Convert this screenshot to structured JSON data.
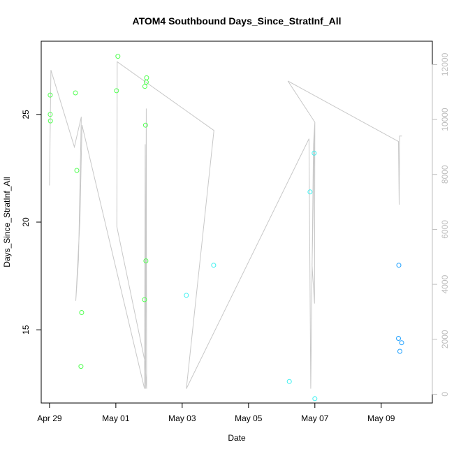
{
  "chart_data": {
    "type": "scatter",
    "title": "ATOM4 Southbound Days_Since_StratInf_All",
    "xlabel": "Date",
    "ylabel": "Days_Since_StratInf_All",
    "xlim": [
      "2016-04-28T18:00",
      "2016-05-10T13:00"
    ],
    "ylim": [
      11.6,
      28.4
    ],
    "y2lim": [
      -320,
      12850
    ],
    "x_ticks": [
      "2016-04-29",
      "2016-05-01",
      "2016-05-03",
      "2016-05-05",
      "2016-05-07",
      "2016-05-09"
    ],
    "x_tick_labels": [
      "Apr 29",
      "May 01",
      "May 03",
      "May 05",
      "May 07",
      "May 09"
    ],
    "y_ticks": [
      15,
      20,
      25
    ],
    "y2_ticks": [
      0,
      2000,
      4000,
      6000,
      8000,
      10000,
      12000
    ],
    "grid": false,
    "legend": "none",
    "colors": {
      "early": "#52ff52",
      "mid": "#3df0f0",
      "late": "#1ea0ff",
      "line": "#c8c8c8",
      "right_axis": "#bdbdbd"
    },
    "series": [
      {
        "marker": "circle-open",
        "points": [
          {
            "x": "2016-04-29T00:30",
            "y": 25.9,
            "color": "early"
          },
          {
            "x": "2016-04-29T00:30",
            "y": 25.0,
            "color": "early"
          },
          {
            "x": "2016-04-29T00:40",
            "y": 24.7,
            "color": "early"
          },
          {
            "x": "2016-04-29T18:45",
            "y": 26.0,
            "color": "early"
          },
          {
            "x": "2016-04-29T19:45",
            "y": 22.4,
            "color": "early"
          },
          {
            "x": "2016-04-29T22:45",
            "y": 13.3,
            "color": "early"
          },
          {
            "x": "2016-04-29T23:15",
            "y": 15.8,
            "color": "early"
          },
          {
            "x": "2016-05-01T00:30",
            "y": 26.1,
            "color": "early"
          },
          {
            "x": "2016-05-01T01:30",
            "y": 27.7,
            "color": "early"
          },
          {
            "x": "2016-05-01T20:45",
            "y": 16.4,
            "color": "early"
          },
          {
            "x": "2016-05-01T21:00",
            "y": 26.3,
            "color": "early"
          },
          {
            "x": "2016-05-01T21:30",
            "y": 24.5,
            "color": "early"
          },
          {
            "x": "2016-05-01T21:45",
            "y": 18.2,
            "color": "early"
          },
          {
            "x": "2016-05-01T22:00",
            "y": 26.5,
            "color": "early"
          },
          {
            "x": "2016-05-01T22:15",
            "y": 26.7,
            "color": "early"
          },
          {
            "x": "2016-05-03T03:00",
            "y": 16.6,
            "color": "mid"
          },
          {
            "x": "2016-05-03T22:45",
            "y": 18.0,
            "color": "mid"
          },
          {
            "x": "2016-05-06T05:30",
            "y": 12.6,
            "color": "mid"
          },
          {
            "x": "2016-05-06T20:30",
            "y": 21.4,
            "color": "mid"
          },
          {
            "x": "2016-05-06T23:30",
            "y": 23.2,
            "color": "mid"
          },
          {
            "x": "2016-05-07T00:00",
            "y": 11.8,
            "color": "mid"
          },
          {
            "x": "2016-05-09T12:45",
            "y": 18.0,
            "color": "late"
          },
          {
            "x": "2016-05-09T12:30",
            "y": 14.6,
            "color": "late"
          },
          {
            "x": "2016-05-09T13:30",
            "y": 14.0,
            "color": "late"
          },
          {
            "x": "2016-05-09T14:45",
            "y": 14.4,
            "color": "late"
          }
        ]
      },
      {
        "axis": "right",
        "line": true,
        "color": "line",
        "points": [
          {
            "x": "2016-04-29T00:00",
            "y": 7600
          },
          {
            "x": "2016-04-29T01:00",
            "y": 11800
          },
          {
            "x": "2016-04-29T18:00",
            "y": 9000
          },
          {
            "x": "2016-04-29T23:00",
            "y": 10100
          },
          {
            "x": "2016-04-29T21:00",
            "y": 4900
          },
          {
            "x": "2016-04-29T19:00",
            "y": 3400
          },
          {
            "x": "2016-04-29T22:00",
            "y": 6300
          },
          {
            "x": "2016-04-29T23:30",
            "y": 9800
          },
          {
            "x": "2016-05-01T20:45",
            "y": 200
          },
          {
            "x": "2016-05-01T21:15",
            "y": 9100
          },
          {
            "x": "2016-05-01T21:30",
            "y": 200
          },
          {
            "x": "2016-05-01T22:00",
            "y": 10400
          },
          {
            "x": "2016-05-01T22:15",
            "y": 200
          },
          {
            "x": "2016-05-01T21:00",
            "y": 1200
          },
          {
            "x": "2016-05-01T00:45",
            "y": 6100
          },
          {
            "x": "2016-05-01T01:00",
            "y": 12100
          },
          {
            "x": "2016-05-03T23:00",
            "y": 9600
          },
          {
            "x": "2016-05-03T03:00",
            "y": 200
          },
          {
            "x": "2016-05-06T19:45",
            "y": 9300
          },
          {
            "x": "2016-05-06T21:00",
            "y": 200
          },
          {
            "x": "2016-05-06T23:00",
            "y": 9100
          },
          {
            "x": "2016-05-07T00:00",
            "y": 9900
          },
          {
            "x": "2016-05-06T22:00",
            "y": 4700
          },
          {
            "x": "2016-05-06T23:45",
            "y": 3300
          },
          {
            "x": "2016-05-07T00:00",
            "y": 9900
          },
          {
            "x": "2016-05-06T04:30",
            "y": 11400
          },
          {
            "x": "2016-05-09T12:30",
            "y": 9200
          },
          {
            "x": "2016-05-09T13:00",
            "y": 6900
          },
          {
            "x": "2016-05-09T13:15",
            "y": 9400
          },
          {
            "x": "2016-05-09T15:00",
            "y": 9400
          }
        ]
      }
    ]
  }
}
